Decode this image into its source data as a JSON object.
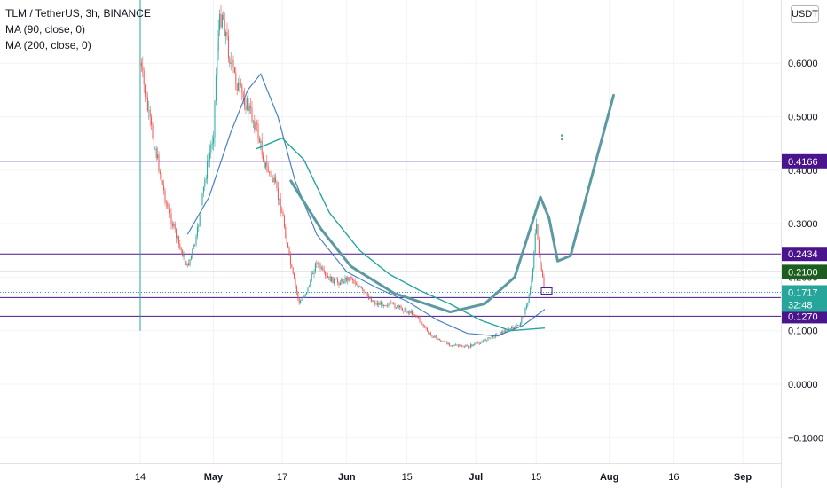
{
  "header": {
    "symbol_line": "TLM / TetherUS, 3h, BINANCE",
    "indicators": [
      "MA (90, close, 0)",
      "MA (200, close, 0)"
    ]
  },
  "currency_label": "USDT",
  "countdown": "32:48",
  "colors": {
    "up": "#26a69a",
    "down": "#ef5350",
    "ma90": "#2b6cb0",
    "ma200": "#26a69a",
    "drawing": "#5b9aa0",
    "level_line": "#4a148c",
    "level_green": "#1b5e20",
    "current": "#26a69a"
  },
  "chart_data": {
    "type": "candlestick",
    "title": "TLM / TetherUS, 3h, BINANCE",
    "y_axis": {
      "ticks": [
        0.6,
        0.5,
        0.4,
        0.3,
        0.2,
        0.1,
        0.0,
        -0.1
      ],
      "tick_labels": [
        "0.6000",
        "0.5000",
        "0.4000",
        "0.3000",
        "0.2000",
        "0.1000",
        "0.0000",
        "−0.1000"
      ],
      "range": [
        -0.14,
        0.71
      ]
    },
    "x_axis": {
      "ticks": [
        {
          "label": "14",
          "date": "2021-04-14"
        },
        {
          "label": "May",
          "date": "2021-05-01"
        },
        {
          "label": "17",
          "date": "2021-05-17"
        },
        {
          "label": "Jun",
          "date": "2021-06-01"
        },
        {
          "label": "15",
          "date": "2021-06-15"
        },
        {
          "label": "Jul",
          "date": "2021-07-01"
        },
        {
          "label": "15",
          "date": "2021-07-15"
        },
        {
          "label": "Aug",
          "date": "2021-08-01"
        },
        {
          "label": "16",
          "date": "2021-08-16"
        },
        {
          "label": "Sep",
          "date": "2021-09-01"
        }
      ]
    },
    "horizontal_levels": [
      {
        "value": 0.4166,
        "label": "0.4166",
        "color": "#4a148c"
      },
      {
        "value": 0.2434,
        "label": "0.2434",
        "color": "#4a148c"
      },
      {
        "value": 0.21,
        "label": "0.2100",
        "color": "#1b5e20"
      },
      {
        "value": 0.1618,
        "label": "0.1618",
        "color": "#4a148c"
      },
      {
        "value": 0.127,
        "label": "0.1270",
        "color": "#4a148c"
      }
    ],
    "current_price": {
      "value": 0.1717,
      "label": "0.1717"
    },
    "price_path": [
      {
        "date": "2021-04-14",
        "price": 0.6
      },
      {
        "date": "2021-04-16",
        "price": 0.5
      },
      {
        "date": "2021-04-18",
        "price": 0.42
      },
      {
        "date": "2021-04-20",
        "price": 0.34
      },
      {
        "date": "2021-04-23",
        "price": 0.26
      },
      {
        "date": "2021-04-25",
        "price": 0.22
      },
      {
        "date": "2021-04-27",
        "price": 0.27
      },
      {
        "date": "2021-04-29",
        "price": 0.38
      },
      {
        "date": "2021-05-01",
        "price": 0.47
      },
      {
        "date": "2021-05-02",
        "price": 0.65
      },
      {
        "date": "2021-05-03",
        "price": 0.7
      },
      {
        "date": "2021-05-05",
        "price": 0.6
      },
      {
        "date": "2021-05-07",
        "price": 0.55
      },
      {
        "date": "2021-05-09",
        "price": 0.52
      },
      {
        "date": "2021-05-11",
        "price": 0.48
      },
      {
        "date": "2021-05-13",
        "price": 0.41
      },
      {
        "date": "2021-05-15",
        "price": 0.38
      },
      {
        "date": "2021-05-17",
        "price": 0.32
      },
      {
        "date": "2021-05-19",
        "price": 0.22
      },
      {
        "date": "2021-05-21",
        "price": 0.15
      },
      {
        "date": "2021-05-23",
        "price": 0.18
      },
      {
        "date": "2021-05-25",
        "price": 0.23
      },
      {
        "date": "2021-05-27",
        "price": 0.2
      },
      {
        "date": "2021-05-30",
        "price": 0.19
      },
      {
        "date": "2021-06-02",
        "price": 0.2
      },
      {
        "date": "2021-06-05",
        "price": 0.17
      },
      {
        "date": "2021-06-08",
        "price": 0.15
      },
      {
        "date": "2021-06-11",
        "price": 0.15
      },
      {
        "date": "2021-06-14",
        "price": 0.14
      },
      {
        "date": "2021-06-17",
        "price": 0.13
      },
      {
        "date": "2021-06-20",
        "price": 0.095
      },
      {
        "date": "2021-06-23",
        "price": 0.08
      },
      {
        "date": "2021-06-26",
        "price": 0.072
      },
      {
        "date": "2021-06-29",
        "price": 0.07
      },
      {
        "date": "2021-07-02",
        "price": 0.078
      },
      {
        "date": "2021-07-05",
        "price": 0.09
      },
      {
        "date": "2021-07-08",
        "price": 0.1
      },
      {
        "date": "2021-07-11",
        "price": 0.11
      },
      {
        "date": "2021-07-13",
        "price": 0.15
      },
      {
        "date": "2021-07-14",
        "price": 0.2
      },
      {
        "date": "2021-07-15",
        "price": 0.3
      },
      {
        "date": "2021-07-16",
        "price": 0.22
      },
      {
        "date": "2021-07-17",
        "price": 0.1717
      }
    ],
    "ma90_path": [
      {
        "date": "2021-04-25",
        "price": 0.28
      },
      {
        "date": "2021-04-30",
        "price": 0.35
      },
      {
        "date": "2021-05-05",
        "price": 0.47
      },
      {
        "date": "2021-05-09",
        "price": 0.55
      },
      {
        "date": "2021-05-12",
        "price": 0.58
      },
      {
        "date": "2021-05-16",
        "price": 0.5
      },
      {
        "date": "2021-05-20",
        "price": 0.38
      },
      {
        "date": "2021-05-25",
        "price": 0.28
      },
      {
        "date": "2021-06-01",
        "price": 0.21
      },
      {
        "date": "2021-06-08",
        "price": 0.18
      },
      {
        "date": "2021-06-15",
        "price": 0.155
      },
      {
        "date": "2021-06-22",
        "price": 0.12
      },
      {
        "date": "2021-06-29",
        "price": 0.095
      },
      {
        "date": "2021-07-06",
        "price": 0.09
      },
      {
        "date": "2021-07-12",
        "price": 0.11
      },
      {
        "date": "2021-07-17",
        "price": 0.14
      }
    ],
    "ma200_path": [
      {
        "date": "2021-05-11",
        "price": 0.44
      },
      {
        "date": "2021-05-17",
        "price": 0.46
      },
      {
        "date": "2021-05-22",
        "price": 0.42
      },
      {
        "date": "2021-05-28",
        "price": 0.32
      },
      {
        "date": "2021-06-04",
        "price": 0.25
      },
      {
        "date": "2021-06-11",
        "price": 0.205
      },
      {
        "date": "2021-06-18",
        "price": 0.175
      },
      {
        "date": "2021-06-25",
        "price": 0.15
      },
      {
        "date": "2021-07-02",
        "price": 0.12
      },
      {
        "date": "2021-07-09",
        "price": 0.1
      },
      {
        "date": "2021-07-17",
        "price": 0.105
      }
    ],
    "drawing_path": [
      {
        "date": "2021-05-19",
        "price": 0.38
      },
      {
        "date": "2021-05-26",
        "price": 0.29
      },
      {
        "date": "2021-06-02",
        "price": 0.22
      },
      {
        "date": "2021-06-12",
        "price": 0.17
      },
      {
        "date": "2021-06-25",
        "price": 0.135
      },
      {
        "date": "2021-07-03",
        "price": 0.15
      },
      {
        "date": "2021-07-10",
        "price": 0.2
      },
      {
        "date": "2021-07-14",
        "price": 0.3
      },
      {
        "date": "2021-07-16",
        "price": 0.35
      },
      {
        "date": "2021-07-18",
        "price": 0.31
      },
      {
        "date": "2021-07-20",
        "price": 0.23
      },
      {
        "date": "2021-07-23",
        "price": 0.24
      },
      {
        "date": "2021-07-26",
        "price": 0.33
      },
      {
        "date": "2021-07-30",
        "price": 0.45
      },
      {
        "date": "2021-08-02",
        "price": 0.54
      }
    ]
  }
}
